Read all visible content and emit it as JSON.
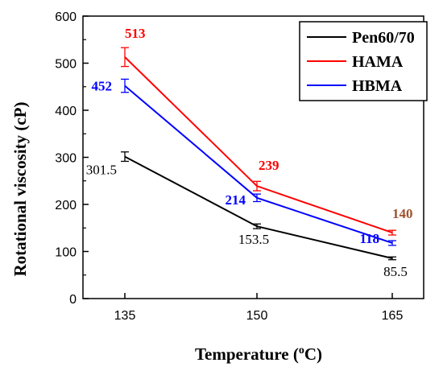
{
  "chart_data": {
    "type": "line",
    "xlabel": "Temperature (",
    "xlabel_sup": "o",
    "xlabel_unit": "C)",
    "ylabel": "Rotational viscosity (cP)",
    "x": [
      135,
      150,
      165
    ],
    "xticks": [
      "135",
      "150",
      "165"
    ],
    "ylim": [
      0,
      600
    ],
    "yticks": [
      "0",
      "100",
      "200",
      "300",
      "400",
      "500",
      "600"
    ],
    "legend_position": "top-right",
    "series": [
      {
        "name": "Pen60/70",
        "color": "#000000",
        "values": [
          301.5,
          153.5,
          85.5
        ],
        "labels": [
          "301.5",
          "153.5",
          "85.5"
        ],
        "errors": [
          10,
          5,
          3
        ],
        "label_color": "#000000"
      },
      {
        "name": "HAMA",
        "color": "#ff0000",
        "values": [
          513,
          239,
          140
        ],
        "labels": [
          "513",
          "239",
          "140"
        ],
        "errors": [
          20,
          10,
          5
        ],
        "label_color": "#ff0000",
        "last_label_color": "#a0522d"
      },
      {
        "name": "HBMA",
        "color": "#0000ff",
        "values": [
          452,
          214,
          118
        ],
        "labels": [
          "452",
          "214",
          "118"
        ],
        "errors": [
          14,
          8,
          5
        ],
        "label_color": "#0000ff"
      }
    ]
  }
}
